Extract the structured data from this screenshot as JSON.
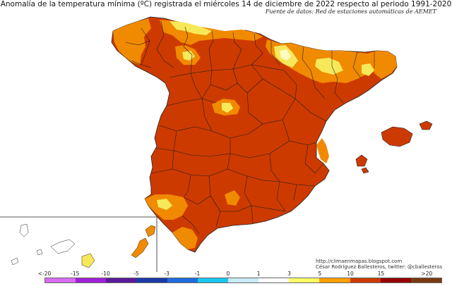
{
  "title": "Anomalía de la temperatura mínima (ºC) registrada el miércoles 14 de diciembre de 2022 respecto al periodo 1991-2020",
  "source": "Fuente de datos: Red de estaciones automáticas de AEMET",
  "credits": {
    "blog": "http://climaenmapas.blogspot.com",
    "author": "César Rodríguez Ballesteros, twitter: @cballesteros"
  },
  "legend": {
    "labels": [
      "<-20",
      "-15",
      "-10",
      "-5",
      "-3",
      "-1",
      "0",
      "1",
      "3",
      "5",
      "10",
      "15",
      ">20"
    ],
    "colors": [
      "#d96cf2",
      "#a020d8",
      "#5a1a9a",
      "#1a3aa8",
      "#1f6de0",
      "#1ac6f0",
      "#c8ecf8",
      "#ffffff",
      "#ffff66",
      "#ffa000",
      "#cd3a00",
      "#960000",
      "#7a3a10"
    ]
  },
  "colors": {
    "land_main": "#cd3a00",
    "land_orange": "#f08a00",
    "land_yellow": "#f7e85a",
    "land_pale": "#fff9c2",
    "borders": "#1a1a1a"
  }
}
